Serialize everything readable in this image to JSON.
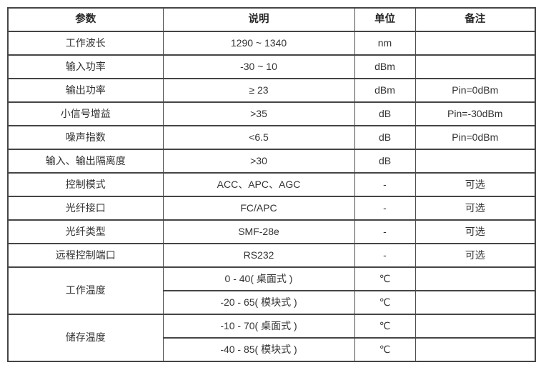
{
  "table": {
    "headers": [
      "参数",
      "说明",
      "单位",
      "备注"
    ],
    "rows": [
      {
        "param": "工作波长",
        "desc": "1290 ~ 1340",
        "unit": "nm",
        "note": ""
      },
      {
        "param": "输入功率",
        "desc": "-30 ~ 10",
        "unit": "dBm",
        "note": ""
      },
      {
        "param": "输出功率",
        "desc": "≥ 23",
        "unit": "dBm",
        "note": "Pin=0dBm"
      },
      {
        "param": "小信号增益",
        "desc": ">35",
        "unit": "dB",
        "note": "Pin=-30dBm"
      },
      {
        "param": "噪声指数",
        "desc": "<6.5",
        "unit": "dB",
        "note": "Pin=0dBm"
      },
      {
        "param": "输入、输出隔离度",
        "desc": ">30",
        "unit": "dB",
        "note": ""
      },
      {
        "param": "控制模式",
        "desc": "ACC、APC、AGC",
        "unit": "-",
        "note": "可选"
      },
      {
        "param": "光纤接口",
        "desc": "FC/APC",
        "unit": "-",
        "note": "可选"
      },
      {
        "param": "光纤类型",
        "desc": "SMF-28e",
        "unit": "-",
        "note": "可选"
      },
      {
        "param": "远程控制端口",
        "desc": "RS232",
        "unit": "-",
        "note": "可选"
      },
      {
        "param": "工作温度",
        "param_rowspan": 2,
        "desc": "0 - 40( 桌面式 )",
        "unit": "℃",
        "note": ""
      },
      {
        "param": null,
        "desc": "-20 - 65( 模块式 )",
        "unit": "℃",
        "note": ""
      },
      {
        "param": "储存温度",
        "param_rowspan": 2,
        "desc": "-10 - 70( 桌面式 )",
        "unit": "℃",
        "note": ""
      },
      {
        "param": null,
        "desc": "-40 - 85( 模块式 )",
        "unit": "℃",
        "note": ""
      }
    ]
  },
  "colors": {
    "border": "#454545",
    "text": "#333333",
    "background": "#ffffff"
  }
}
